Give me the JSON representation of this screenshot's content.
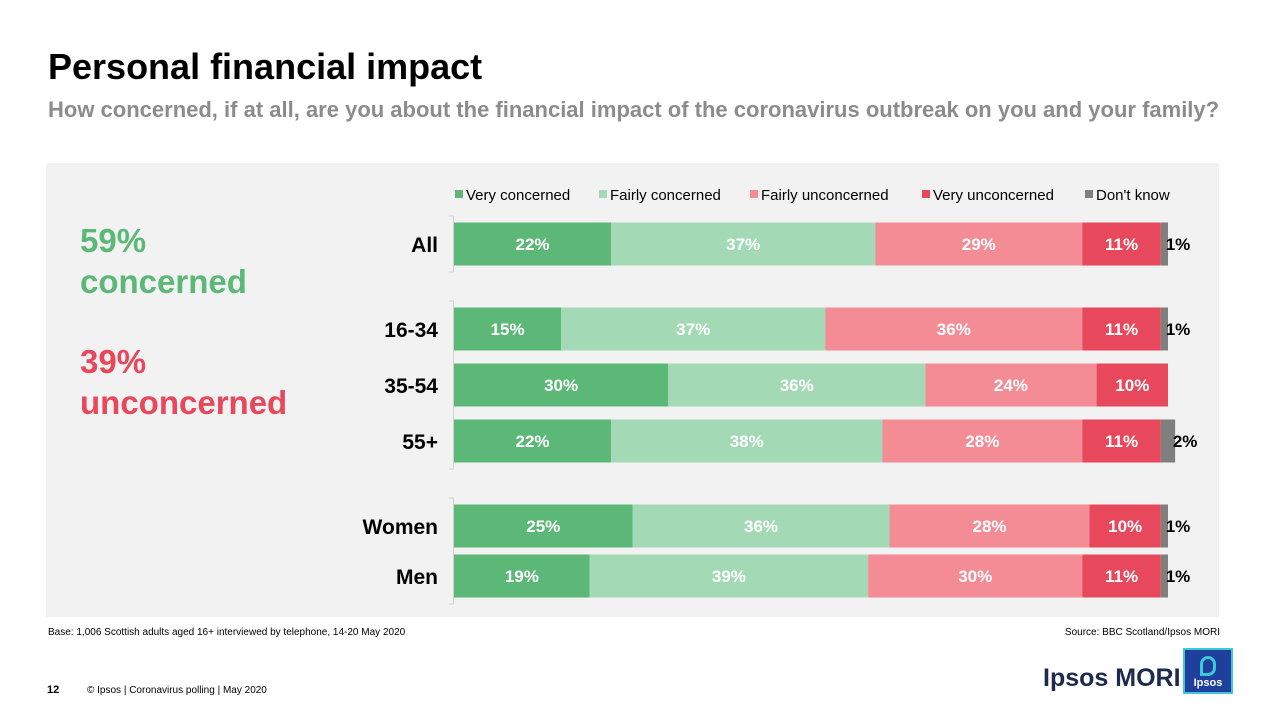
{
  "page": {
    "title": "Personal financial impact",
    "subtitle": "How concerned, if at all, are you about the financial impact of the coronavirus outbreak on you and your family?",
    "base_note": "Base: 1,006 Scottish adults aged 16+ interviewed by telephone, 14-20 May 2020",
    "source_note": "Source: BBC Scotland/Ipsos MORI",
    "page_number": "12",
    "copyright": "© Ipsos | Coronavirus polling | May 2020",
    "brand": "Ipsos MORI",
    "logo_text": "Ipsos"
  },
  "summary": {
    "concerned_pct": "59%",
    "concerned_label": "concerned",
    "unconcerned_pct": "39%",
    "unconcerned_label": "unconcerned"
  },
  "colors": {
    "very_concerned": "#5cb877",
    "fairly_concerned": "#a3d9b5",
    "fairly_unconcerned": "#f48c96",
    "very_unconcerned": "#e8485b",
    "dont_know": "#7f7f7f"
  },
  "chart_data": {
    "type": "bar",
    "orientation": "horizontal",
    "stacked": true,
    "legend_position": "top",
    "xlim": [
      0,
      100
    ],
    "categories": [
      "All",
      "16-34",
      "35-54",
      "55+",
      "Women",
      "Men"
    ],
    "series": [
      {
        "name": "Very concerned",
        "values": [
          22,
          15,
          30,
          22,
          25,
          19
        ],
        "labels": [
          "22%",
          "15%",
          "30%",
          "22%",
          "25%",
          "19%"
        ]
      },
      {
        "name": "Fairly concerned",
        "values": [
          37,
          37,
          36,
          38,
          36,
          39
        ],
        "labels": [
          "37%",
          "37%",
          "36%",
          "38%",
          "36%",
          "39%"
        ]
      },
      {
        "name": "Fairly unconcerned",
        "values": [
          29,
          36,
          24,
          28,
          28,
          30
        ],
        "labels": [
          "29%",
          "36%",
          "24%",
          "28%",
          "28%",
          "30%"
        ]
      },
      {
        "name": "Very unconcerned",
        "values": [
          11,
          11,
          10,
          11,
          10,
          11
        ],
        "labels": [
          "11%",
          "11%",
          "10%",
          "11%",
          "10%",
          "11%"
        ]
      },
      {
        "name": "Don't know",
        "values": [
          1,
          1,
          0,
          2,
          1,
          1
        ],
        "labels": [
          "1%",
          "1%",
          "",
          "2%",
          "1%",
          "1%"
        ]
      }
    ]
  }
}
